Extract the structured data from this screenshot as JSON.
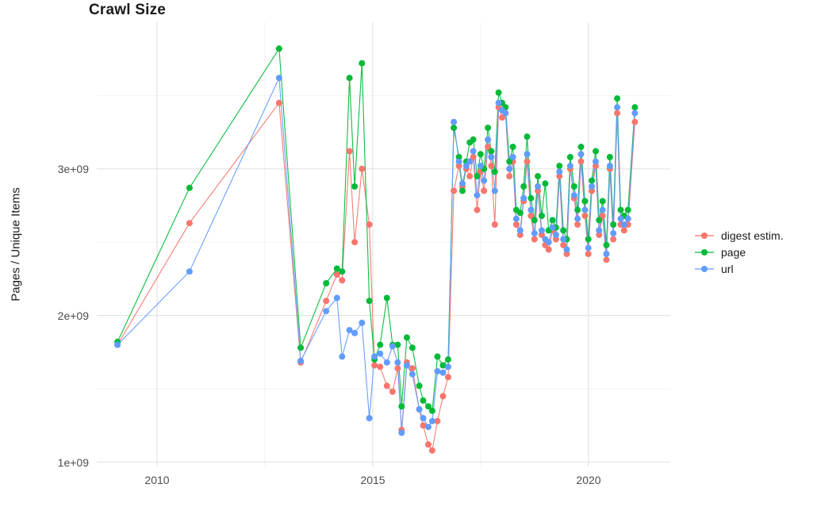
{
  "title": "Crawl Size",
  "ylabel": "Pages / Unique Items",
  "axes": {
    "y_tick_labels": [
      "3e+09",
      "2e+09",
      "1e+09"
    ],
    "x_tick_labels": [
      "2010",
      "2015",
      "2020"
    ]
  },
  "legend": {
    "items": [
      {
        "label": "digest estim.",
        "color": "#F8766D"
      },
      {
        "label": "page",
        "color": "#00BA38"
      },
      {
        "label": "url",
        "color": "#619CFF"
      }
    ]
  },
  "colors": {
    "grid_major": "#e3e3e3",
    "grid_minor": "#f2f2f2",
    "background": "#ffffff"
  },
  "chart_data": {
    "type": "scatter",
    "title": "Crawl Size",
    "xlabel": "",
    "ylabel": "Pages / Unique Items",
    "legend_position": "right",
    "grid": true,
    "y_values_in": "billions",
    "xlim": [
      2008.6,
      2021.9
    ],
    "ylim_billions": [
      0.97,
      4.0
    ],
    "x_ticks": [
      2010,
      2015,
      2020
    ],
    "x_minor_ticks": [
      2012.5,
      2017.5
    ],
    "y_ticks_billions": [
      1,
      2,
      3
    ],
    "y_minor_ticks_billions": [
      1.5,
      2.5,
      3.5
    ],
    "x": [
      2009.08,
      2010.75,
      2012.83,
      2013.33,
      2013.92,
      2014.17,
      2014.29,
      2014.46,
      2014.58,
      2014.75,
      2014.92,
      2015.04,
      2015.17,
      2015.33,
      2015.46,
      2015.58,
      2015.67,
      2015.79,
      2015.92,
      2016.08,
      2016.17,
      2016.29,
      2016.38,
      2016.5,
      2016.63,
      2016.75,
      2016.88,
      2017.0,
      2017.08,
      2017.17,
      2017.25,
      2017.33,
      2017.42,
      2017.5,
      2017.58,
      2017.67,
      2017.75,
      2017.83,
      2017.92,
      2018.0,
      2018.08,
      2018.17,
      2018.25,
      2018.33,
      2018.42,
      2018.5,
      2018.58,
      2018.67,
      2018.75,
      2018.83,
      2018.92,
      2019.0,
      2019.08,
      2019.17,
      2019.25,
      2019.33,
      2019.42,
      2019.5,
      2019.58,
      2019.67,
      2019.75,
      2019.83,
      2019.92,
      2020.0,
      2020.08,
      2020.17,
      2020.25,
      2020.33,
      2020.42,
      2020.5,
      2020.58,
      2020.67,
      2020.75,
      2020.83,
      2020.92,
      2021.08
    ],
    "series": [
      {
        "name": "digest estim.",
        "color": "#F8766D",
        "values": [
          1.8,
          2.63,
          3.45,
          1.68,
          2.1,
          2.28,
          2.24,
          3.12,
          2.5,
          3.0,
          2.62,
          1.66,
          1.65,
          1.52,
          1.48,
          1.64,
          1.22,
          1.68,
          1.64,
          1.36,
          1.25,
          1.12,
          1.08,
          1.28,
          1.45,
          1.58,
          2.85,
          3.02,
          2.88,
          3.0,
          2.95,
          3.08,
          2.72,
          2.98,
          2.85,
          3.15,
          3.02,
          2.62,
          3.42,
          3.35,
          3.38,
          2.95,
          3.05,
          2.62,
          2.55,
          2.78,
          3.05,
          2.68,
          2.52,
          2.85,
          2.55,
          2.48,
          2.45,
          2.58,
          2.52,
          2.95,
          2.48,
          2.42,
          3.0,
          2.8,
          2.62,
          3.05,
          2.68,
          2.42,
          2.85,
          3.02,
          2.55,
          2.68,
          2.38,
          3.0,
          2.52,
          3.38,
          2.62,
          2.58,
          2.62,
          3.32
        ]
      },
      {
        "name": "page",
        "color": "#00BA38",
        "values": [
          1.82,
          2.87,
          3.82,
          1.78,
          2.22,
          2.32,
          2.3,
          3.62,
          2.88,
          3.72,
          2.1,
          1.7,
          1.8,
          2.12,
          1.8,
          1.8,
          1.38,
          1.85,
          1.78,
          1.52,
          1.42,
          1.38,
          1.35,
          1.72,
          1.66,
          1.7,
          3.28,
          3.08,
          2.85,
          3.05,
          3.18,
          3.2,
          2.95,
          3.1,
          3.0,
          3.28,
          3.12,
          2.98,
          3.52,
          3.45,
          3.42,
          3.05,
          3.15,
          2.72,
          2.7,
          2.88,
          3.22,
          2.8,
          2.65,
          2.95,
          2.68,
          2.9,
          2.58,
          2.65,
          2.6,
          3.02,
          2.58,
          2.52,
          3.08,
          2.88,
          2.72,
          3.15,
          2.78,
          2.52,
          2.92,
          3.12,
          2.65,
          2.78,
          2.48,
          3.08,
          2.62,
          3.48,
          2.72,
          2.68,
          2.72,
          3.42
        ]
      },
      {
        "name": "url",
        "color": "#619CFF",
        "values": [
          1.8,
          2.3,
          3.62,
          1.69,
          2.03,
          2.12,
          1.72,
          1.9,
          1.88,
          1.95,
          1.3,
          1.72,
          1.74,
          1.68,
          1.79,
          1.68,
          1.2,
          1.66,
          1.6,
          1.36,
          1.3,
          1.24,
          1.28,
          1.62,
          1.61,
          1.65,
          3.32,
          3.05,
          2.9,
          3.02,
          3.05,
          3.12,
          2.82,
          3.02,
          2.92,
          3.2,
          3.08,
          2.85,
          3.45,
          3.4,
          3.38,
          3.0,
          3.08,
          2.66,
          2.58,
          2.8,
          3.1,
          2.72,
          2.56,
          2.88,
          2.58,
          2.52,
          2.5,
          2.6,
          2.55,
          2.98,
          2.52,
          2.45,
          3.02,
          2.82,
          2.66,
          3.1,
          2.72,
          2.46,
          2.88,
          3.05,
          2.58,
          2.72,
          2.42,
          3.02,
          2.56,
          3.42,
          2.66,
          2.62,
          2.66,
          3.38
        ]
      }
    ]
  }
}
